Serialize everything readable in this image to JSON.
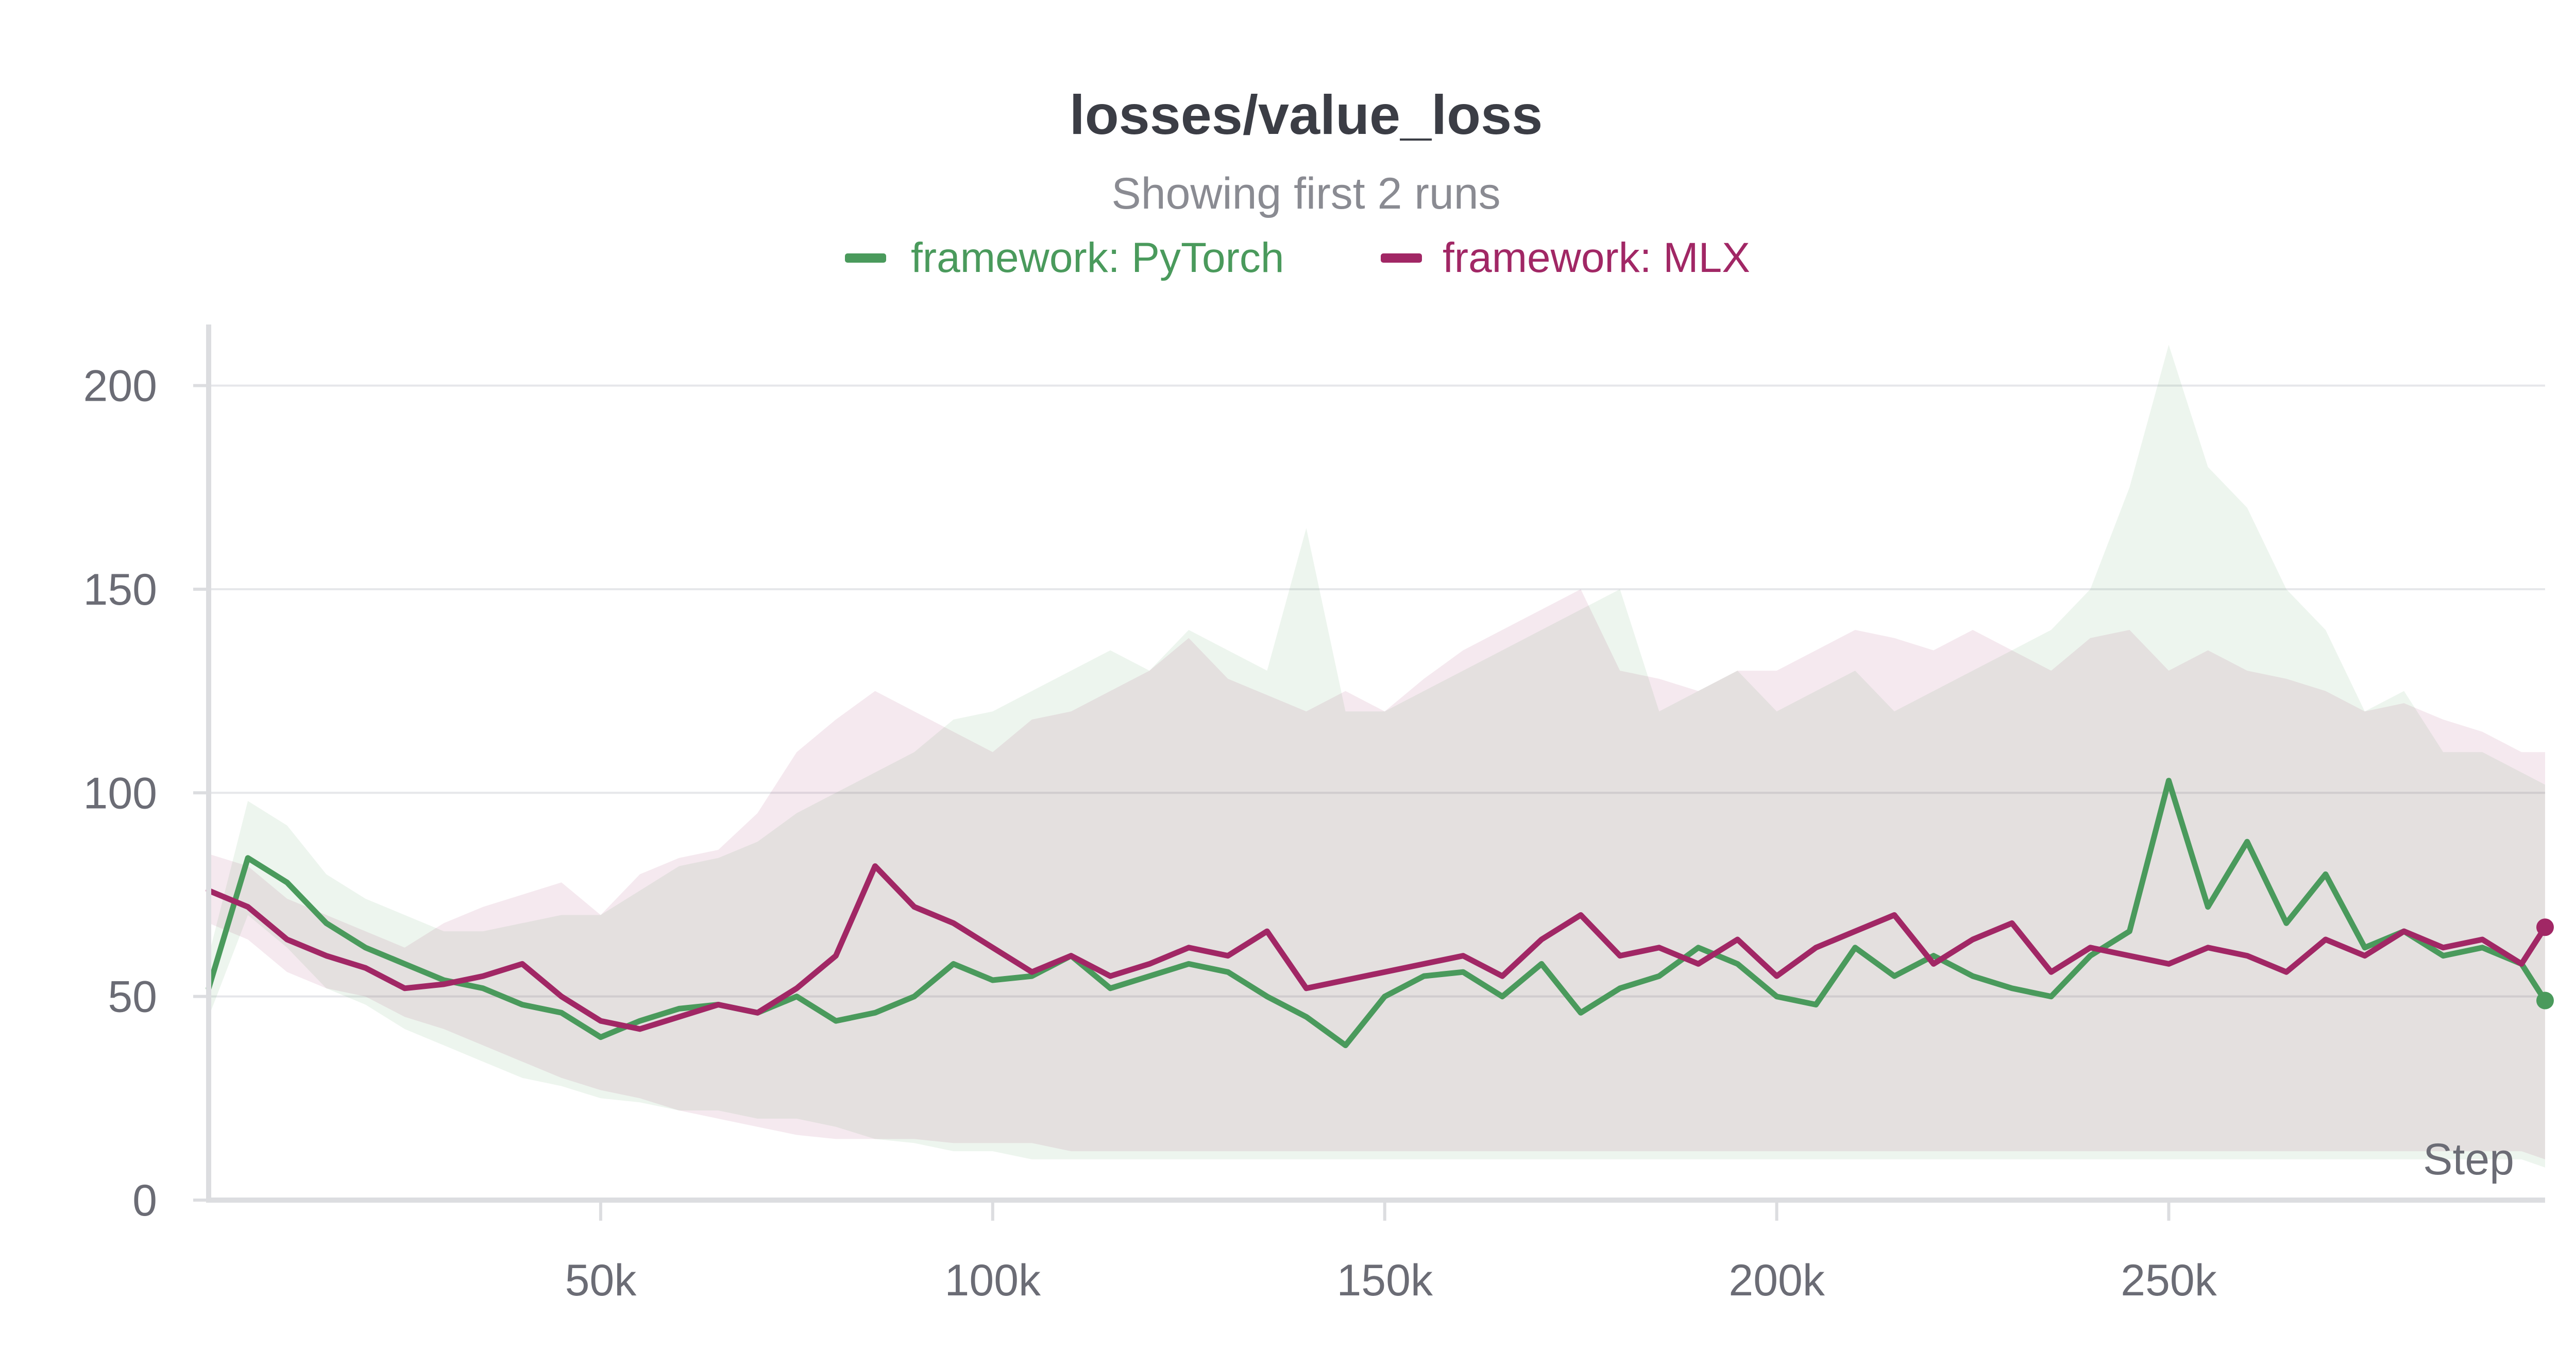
{
  "chart_data": {
    "type": "line",
    "title": "losses/value_loss",
    "subtitle": "Showing first 2 runs",
    "xlabel": "Step",
    "ylabel": "",
    "xlim": [
      0,
      298000
    ],
    "ylim": [
      0,
      215
    ],
    "x_ticks": [
      {
        "value": 50000,
        "label": "50k"
      },
      {
        "value": 100000,
        "label": "100k"
      },
      {
        "value": 150000,
        "label": "150k"
      },
      {
        "value": 200000,
        "label": "200k"
      },
      {
        "value": 250000,
        "label": "250k"
      }
    ],
    "y_ticks": [
      {
        "value": 0,
        "label": "0"
      },
      {
        "value": 50,
        "label": "50"
      },
      {
        "value": 100,
        "label": "100"
      },
      {
        "value": 150,
        "label": "150"
      },
      {
        "value": 200,
        "label": "200"
      }
    ],
    "grid": true,
    "legend_position": "top-center",
    "series": [
      {
        "name": "framework: PyTorch",
        "color": "#4a9a5c",
        "x": [
          0,
          5000,
          10000,
          15000,
          20000,
          25000,
          30000,
          35000,
          40000,
          45000,
          50000,
          55000,
          60000,
          65000,
          70000,
          75000,
          80000,
          85000,
          90000,
          95000,
          100000,
          105000,
          110000,
          115000,
          120000,
          125000,
          130000,
          135000,
          140000,
          145000,
          150000,
          155000,
          160000,
          165000,
          170000,
          175000,
          180000,
          185000,
          190000,
          195000,
          200000,
          205000,
          210000,
          215000,
          220000,
          225000,
          230000,
          235000,
          240000,
          245000,
          250000,
          255000,
          260000,
          265000,
          270000,
          275000,
          280000,
          285000,
          290000,
          295000,
          298000
        ],
        "y": [
          52,
          84,
          78,
          68,
          62,
          58,
          54,
          52,
          48,
          46,
          40,
          44,
          47,
          48,
          46,
          50,
          44,
          46,
          50,
          58,
          54,
          55,
          60,
          52,
          55,
          58,
          56,
          50,
          45,
          38,
          50,
          55,
          56,
          50,
          58,
          46,
          52,
          55,
          62,
          58,
          50,
          48,
          62,
          55,
          60,
          55,
          52,
          50,
          60,
          66,
          103,
          72,
          88,
          68,
          80,
          62,
          66,
          60,
          62,
          58,
          49
        ],
        "band_low": [
          45,
          70,
          62,
          52,
          48,
          42,
          38,
          34,
          30,
          28,
          25,
          24,
          22,
          22,
          20,
          20,
          18,
          15,
          14,
          12,
          12,
          10,
          10,
          10,
          10,
          10,
          10,
          10,
          10,
          10,
          10,
          10,
          10,
          10,
          10,
          10,
          10,
          10,
          10,
          10,
          10,
          10,
          10,
          10,
          10,
          10,
          10,
          10,
          10,
          10,
          10,
          10,
          10,
          10,
          10,
          10,
          10,
          10,
          10,
          10,
          8
        ],
        "band_high": [
          60,
          98,
          92,
          80,
          74,
          70,
          66,
          66,
          68,
          70,
          70,
          76,
          82,
          84,
          88,
          95,
          100,
          105,
          110,
          118,
          120,
          125,
          130,
          135,
          130,
          140,
          135,
          130,
          165,
          120,
          120,
          125,
          130,
          135,
          140,
          145,
          150,
          120,
          125,
          130,
          120,
          125,
          130,
          120,
          125,
          130,
          135,
          140,
          150,
          175,
          210,
          180,
          170,
          150,
          140,
          120,
          125,
          110,
          110,
          105,
          102
        ]
      },
      {
        "name": "framework: MLX",
        "color": "#a12765",
        "x": [
          0,
          5000,
          10000,
          15000,
          20000,
          25000,
          30000,
          35000,
          40000,
          45000,
          50000,
          55000,
          60000,
          65000,
          70000,
          75000,
          80000,
          85000,
          90000,
          95000,
          100000,
          105000,
          110000,
          115000,
          120000,
          125000,
          130000,
          135000,
          140000,
          145000,
          150000,
          155000,
          160000,
          165000,
          170000,
          175000,
          180000,
          185000,
          190000,
          195000,
          200000,
          205000,
          210000,
          215000,
          220000,
          225000,
          230000,
          235000,
          240000,
          245000,
          250000,
          255000,
          260000,
          265000,
          270000,
          275000,
          280000,
          285000,
          290000,
          295000,
          298000
        ],
        "y": [
          76,
          72,
          64,
          60,
          57,
          52,
          53,
          55,
          58,
          50,
          44,
          42,
          45,
          48,
          46,
          52,
          60,
          82,
          72,
          68,
          62,
          56,
          60,
          55,
          58,
          62,
          60,
          66,
          52,
          54,
          56,
          58,
          60,
          55,
          64,
          70,
          60,
          62,
          58,
          64,
          55,
          62,
          66,
          70,
          58,
          64,
          68,
          56,
          62,
          60,
          58,
          62,
          60,
          56,
          64,
          60,
          66,
          62,
          64,
          58,
          67
        ],
        "band_low": [
          68,
          64,
          56,
          52,
          50,
          45,
          42,
          38,
          34,
          30,
          27,
          25,
          22,
          20,
          18,
          16,
          15,
          15,
          15,
          14,
          14,
          14,
          12,
          12,
          12,
          12,
          12,
          12,
          12,
          12,
          12,
          12,
          12,
          12,
          12,
          12,
          12,
          12,
          12,
          12,
          12,
          12,
          12,
          12,
          12,
          12,
          12,
          12,
          12,
          12,
          12,
          12,
          12,
          12,
          12,
          12,
          12,
          12,
          12,
          12,
          10
        ],
        "band_high": [
          85,
          82,
          74,
          70,
          66,
          62,
          68,
          72,
          75,
          78,
          70,
          80,
          84,
          86,
          95,
          110,
          118,
          125,
          120,
          115,
          110,
          118,
          120,
          125,
          130,
          138,
          128,
          124,
          120,
          125,
          120,
          128,
          135,
          140,
          145,
          150,
          130,
          128,
          125,
          130,
          130,
          135,
          140,
          138,
          135,
          140,
          135,
          130,
          138,
          140,
          130,
          135,
          130,
          128,
          125,
          120,
          122,
          118,
          115,
          110,
          110
        ]
      }
    ]
  }
}
